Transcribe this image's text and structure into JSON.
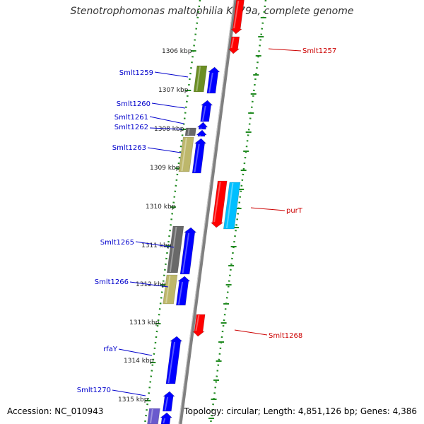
{
  "title": "Stenotrophomonas maltophilia K279a, complete genome",
  "accession": "Accession: NC_010943",
  "summary": "Topology: circular; Length: 4,851,126 bp; Genes: 4,386",
  "colors": {
    "forward_gene": "#0000ff",
    "reverse_gene": "#ff0000",
    "feature_olive": "#6b8e23",
    "feature_khaki": "#bdb76b",
    "feature_gray": "#696969",
    "feature_cyan": "#00bfff",
    "feature_purple": "#6a5acd",
    "backbone": "#808080",
    "ticks": "#228b22",
    "label_forward": "#0000cc",
    "label_reverse": "#cc0000"
  },
  "kbp_ticks": [
    {
      "label": "1306 kbp"
    },
    {
      "label": "1307 kbp"
    },
    {
      "label": "1308 kbp"
    },
    {
      "label": "1309 kbp"
    },
    {
      "label": "1310 kbp"
    },
    {
      "label": "1311 kbp"
    },
    {
      "label": "1312 kbp"
    },
    {
      "label": "1313 kbp"
    },
    {
      "label": "1314 kbp"
    },
    {
      "label": "1315 kbp"
    }
  ],
  "gene_labels": [
    {
      "text": "Smlt1257",
      "strand": "reverse"
    },
    {
      "text": "Smlt1259",
      "strand": "forward"
    },
    {
      "text": "Smlt1260",
      "strand": "forward"
    },
    {
      "text": "Smlt1261",
      "strand": "forward"
    },
    {
      "text": "Smlt1262",
      "strand": "forward"
    },
    {
      "text": "Smlt1263",
      "strand": "forward"
    },
    {
      "text": "purT",
      "strand": "reverse"
    },
    {
      "text": "Smlt1265",
      "strand": "forward"
    },
    {
      "text": "Smlt1266",
      "strand": "forward"
    },
    {
      "text": "Smlt1268",
      "strand": "reverse"
    },
    {
      "text": "rfaY",
      "strand": "forward"
    },
    {
      "text": "Smlt1270",
      "strand": "forward"
    }
  ]
}
